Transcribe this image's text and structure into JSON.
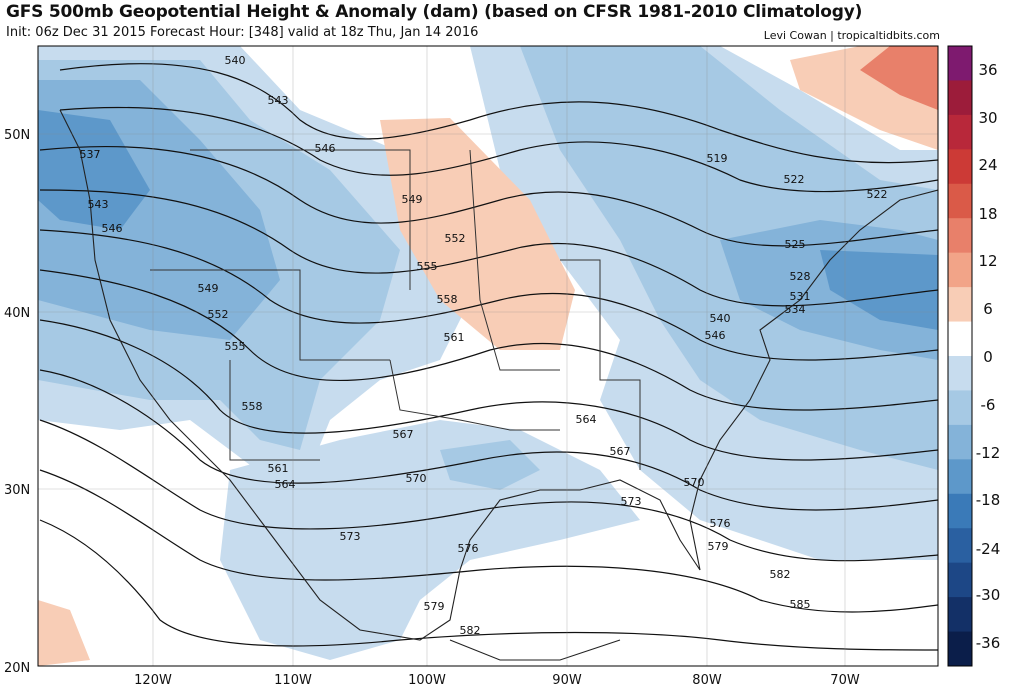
{
  "header": {
    "title": "GFS 500mb Geopotential Height & Anomaly (dam) (based on CFSR 1981-2010 Climatology)",
    "subtitle": "Init: 06z Dec 31 2015   Forecast Hour: [348]   valid at 18z Thu, Jan 14 2016",
    "credit": "Levi Cowan | tropicaltidbits.com"
  },
  "axes": {
    "lat_labels": [
      "50N",
      "40N",
      "30N",
      "20N"
    ],
    "lon_labels": [
      "120W",
      "110W",
      "100W",
      "90W",
      "80W",
      "70W"
    ]
  },
  "contour_labels": [
    "537",
    "540",
    "543",
    "543",
    "546",
    "546",
    "549",
    "549",
    "552",
    "552",
    "555",
    "555",
    "558",
    "558",
    "561",
    "561",
    "564",
    "564",
    "567",
    "567",
    "570",
    "570",
    "573",
    "573",
    "576",
    "576",
    "579",
    "579",
    "582",
    "582",
    "585",
    "519",
    "522",
    "522",
    "525",
    "528",
    "531",
    "534",
    "540",
    "546"
  ],
  "colorbar": {
    "labels": [
      "36",
      "30",
      "24",
      "18",
      "12",
      "6",
      "0",
      "-6",
      "-12",
      "-18",
      "-24",
      "-30",
      "-36"
    ],
    "colors": [
      "#7e1a6f",
      "#9c1c3a",
      "#b8283a",
      "#cc3a36",
      "#da5a48",
      "#e8806a",
      "#f2a488",
      "#f8cdb6",
      "#ffffff",
      "#c7dcee",
      "#a6c9e4",
      "#84b3d9",
      "#5d98ca",
      "#3a7ab8",
      "#2a60a1",
      "#1d4786",
      "#133067",
      "#0b1e4a"
    ]
  }
}
